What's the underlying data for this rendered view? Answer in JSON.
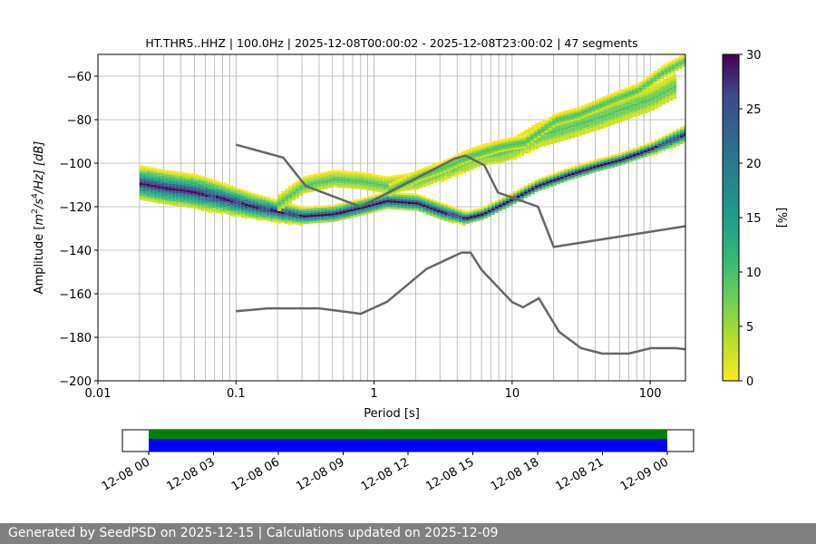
{
  "chart_data": [
    {
      "type": "heatmap",
      "title": "HT.THR5..HHZ | 100.0Hz | 2025-12-08T00:00:02 - 2025-12-08T23:00:02 | 47 segments",
      "xlabel": "Period [s]",
      "ylabel": "Amplitude [m²/s⁴/Hz] [dB]",
      "ylabel_parts": {
        "prefix": "Amplitude [",
        "m": "m",
        "exp2": "2",
        "s": "/s",
        "exp4": "4",
        "suffix": "/Hz] [dB]"
      },
      "x_scale": "log",
      "xlim": [
        0.01,
        180
      ],
      "ylim": [
        -200,
        -50
      ],
      "x_ticks": [
        0.01,
        0.1,
        1,
        10,
        100
      ],
      "x_tick_labels": [
        "0.01",
        "0.1",
        "1",
        "10",
        "100"
      ],
      "y_ticks": [
        -200,
        -180,
        -160,
        -140,
        -120,
        -100,
        -80,
        -60
      ],
      "y_tick_labels": [
        "−200",
        "−180",
        "−160",
        "−140",
        "−120",
        "−100",
        "−80",
        "−60"
      ],
      "grid": true,
      "colorbar": {
        "label": "[%]",
        "range": [
          0,
          30
        ],
        "ticks": [
          0,
          5,
          10,
          15,
          20,
          25,
          30
        ],
        "tick_labels": [
          "0",
          "5",
          "10",
          "15",
          "20",
          "25",
          "30"
        ],
        "colormap": "viridis_r"
      },
      "noise_models": [
        {
          "name": "NHNM",
          "color": "#666666",
          "x": [
            0.1,
            0.22,
            0.32,
            0.8,
            3.8,
            4.6,
            6.3,
            7.9,
            15.4,
            20,
            354.8
          ],
          "y": [
            -91.5,
            -97.4,
            -110.5,
            -120,
            -98,
            -96.5,
            -101,
            -113.5,
            -120,
            -138.5,
            -126
          ]
        },
        {
          "name": "NLNM",
          "color": "#666666",
          "x": [
            0.1,
            0.17,
            0.4,
            0.8,
            1.24,
            2.4,
            4.3,
            5.0,
            6.0,
            10.0,
            12.0,
            15.6,
            21.9,
            31.6,
            45,
            70,
            101,
            154,
            180
          ],
          "y": [
            -168,
            -166.7,
            -166.7,
            -169.2,
            -163.7,
            -148.6,
            -141.1,
            -141.1,
            -149.0,
            -163.8,
            -166.2,
            -162.1,
            -177.5,
            -185,
            -187.5,
            -187.5,
            -185,
            -185,
            -185.5
          ]
        }
      ],
      "psd_bands": [
        {
          "name": "main",
          "x": [
            0.02,
            0.03,
            0.05,
            0.08,
            0.12,
            0.2,
            0.3,
            0.5,
            0.8,
            1.2,
            2.0,
            3.0,
            4.5,
            6.0,
            10,
            15,
            25,
            40,
            60,
            100,
            180
          ],
          "y": [
            -109,
            -111,
            -113,
            -116,
            -119,
            -122,
            -124,
            -123,
            -120,
            -117,
            -118,
            -122,
            -125,
            -123,
            -116,
            -110,
            -105,
            -101,
            -98,
            -93,
            -86
          ],
          "spread": [
            8,
            8,
            8,
            7,
            6,
            5,
            4,
            4,
            4,
            4,
            4,
            4,
            3,
            3,
            3,
            3,
            3,
            3,
            3,
            3,
            4
          ]
        },
        {
          "name": "upper",
          "x": [
            0.2,
            0.3,
            0.5,
            0.8,
            1.2,
            2.0,
            3.0,
            4.5,
            6.0,
            8.0,
            10,
            15,
            25,
            40,
            60,
            100,
            150
          ],
          "y": [
            -118,
            -110,
            -107,
            -108,
            -110,
            -108,
            -104,
            -99,
            -96,
            -95,
            -93,
            -87,
            -83,
            -79,
            -75,
            -70,
            -64
          ],
          "spread": [
            4,
            4,
            4,
            4,
            4,
            4,
            4,
            5,
            5,
            5,
            5,
            6,
            6,
            6,
            6,
            6,
            6
          ]
        },
        {
          "name": "top-spikes",
          "x": [
            1.2,
            2.0,
            3.0,
            5.0,
            8.0,
            12,
            20,
            30,
            50,
            80,
            120,
            180
          ],
          "y": [
            -113,
            -106,
            -102,
            -96,
            -92,
            -90,
            -80,
            -77,
            -71,
            -66,
            -58,
            -52
          ],
          "spread": [
            3,
            3,
            3,
            3,
            3,
            3,
            3,
            3,
            3,
            3,
            3,
            3
          ]
        }
      ]
    },
    {
      "type": "bar",
      "name": "data-availability",
      "x_tick_labels": [
        "12-08 00",
        "12-08 03",
        "12-08 06",
        "12-08 09",
        "12-08 12",
        "12-08 15",
        "12-08 18",
        "12-08 21",
        "12-09 00"
      ],
      "segments": [
        {
          "start_hour": 0,
          "end_hour": 24,
          "color": "#008000"
        },
        {
          "start_hour": 0,
          "end_hour": 24,
          "color": "#0000ff"
        }
      ]
    }
  ],
  "footer": {
    "text": "Generated by SeedPSD on 2025-12-15 | Calculations updated on 2025-12-09"
  }
}
